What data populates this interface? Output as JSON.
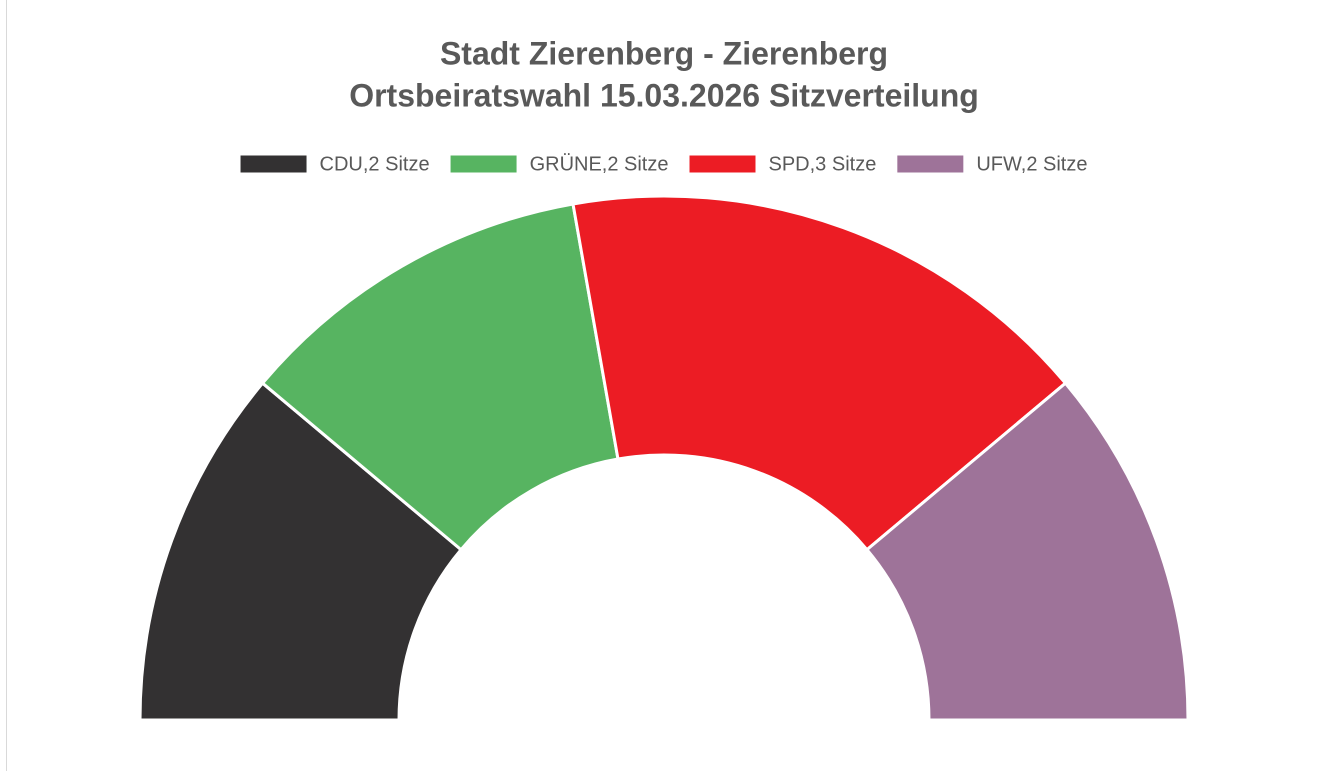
{
  "chart_data": {
    "type": "halfdonut",
    "title": "Stadt Zierenberg - Zierenberg",
    "subtitle": "Ortsbeiratswahl 15.03.2026 Sitzverteilung",
    "categories": [
      "CDU,2 Sitze",
      "GRÜNE,2 Sitze",
      "SPD,3 Sitze",
      "UFW,2 Sitze"
    ],
    "values": [
      2,
      2,
      3,
      2
    ],
    "colors": [
      "#333132",
      "#57b461",
      "#ec1c24",
      "#9e7399"
    ],
    "legend": "top"
  }
}
